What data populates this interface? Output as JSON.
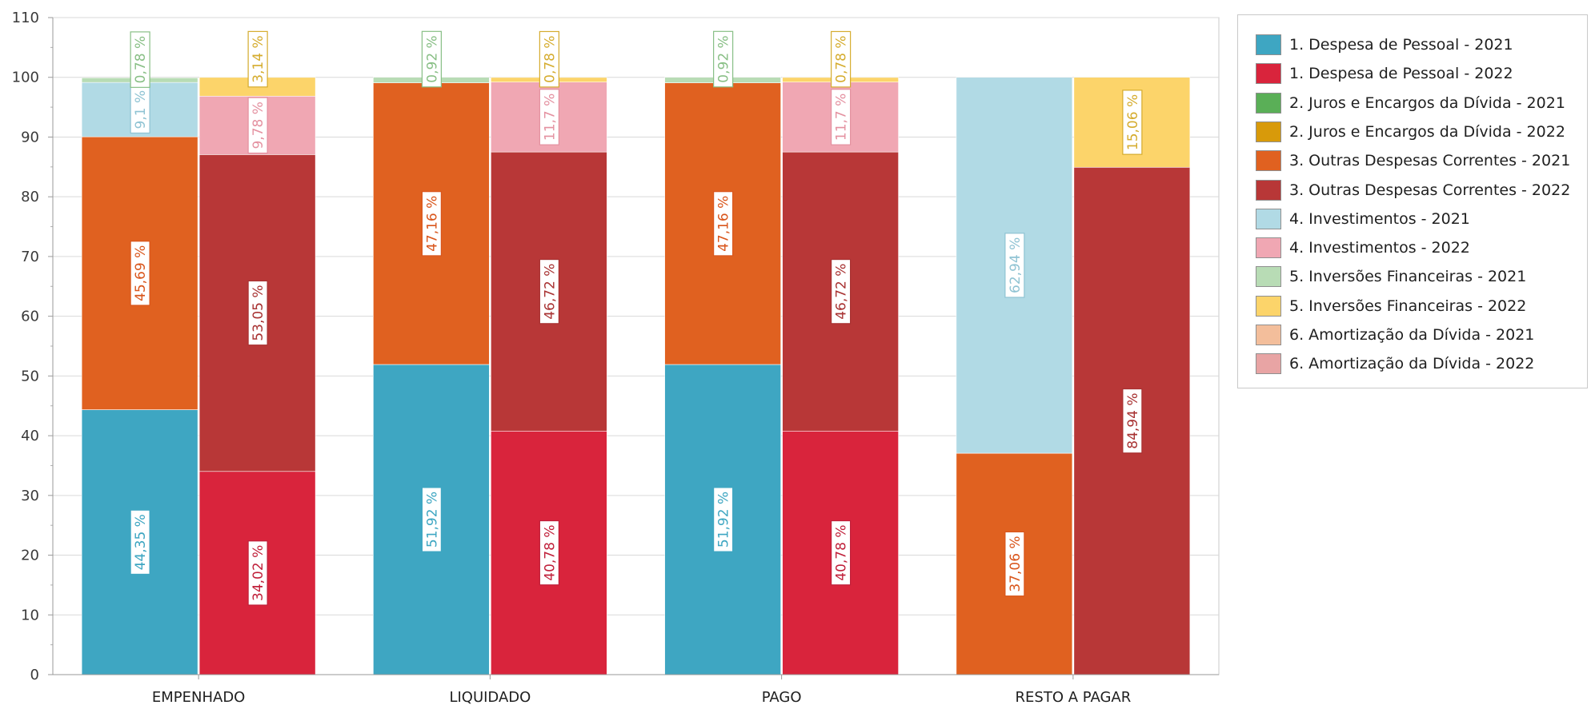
{
  "chart_data": {
    "type": "bar",
    "stacking": "percent-stacked-grouped",
    "title": "",
    "xlabel": "",
    "ylabel": "",
    "ylim": [
      0,
      110
    ],
    "yticks": [
      0,
      10,
      20,
      30,
      40,
      50,
      60,
      70,
      80,
      90,
      100,
      110
    ],
    "grid": true,
    "legend_position": "right",
    "categories": [
      "EMPENHADO",
      "LIQUIDADO",
      "PAGO",
      "RESTO A PAGAR"
    ],
    "groups": [
      "2021",
      "2022"
    ],
    "series": [
      {
        "name": "1. Despesa de Pessoal - 2021",
        "group": "2021",
        "color": "#3ea6c2",
        "label_color": "#3ea6c2",
        "values": [
          44.35,
          51.92,
          51.92,
          0
        ],
        "labels": [
          "44,35 %",
          "51,92 %",
          "51,92 %",
          ""
        ]
      },
      {
        "name": "1. Despesa de Pessoal - 2022",
        "group": "2022",
        "color": "#d9243c",
        "label_color": "#c0203a",
        "values": [
          34.02,
          40.78,
          40.78,
          0
        ],
        "labels": [
          "34,02 %",
          "40,78 %",
          "40,78 %",
          ""
        ]
      },
      {
        "name": "2. Juros e Encargos da Dívida - 2021",
        "group": "2021",
        "color": "#5aaf57",
        "label_color": "#5aaf57",
        "values": [
          0,
          0,
          0,
          0
        ],
        "labels": [
          "",
          "",
          "",
          ""
        ]
      },
      {
        "name": "2. Juros e Encargos da Dívida - 2022",
        "group": "2022",
        "color": "#d89a0a",
        "label_color": "#d89a0a",
        "values": [
          0,
          0,
          0,
          0
        ],
        "labels": [
          "",
          "",
          "",
          ""
        ]
      },
      {
        "name": "3. Outras Despesas Correntes - 2021",
        "group": "2021",
        "color": "#e06120",
        "label_color": "#d9561c",
        "values": [
          45.69,
          47.16,
          47.16,
          37.06
        ],
        "labels": [
          "45,69 %",
          "47,16 %",
          "47,16 %",
          "37,06 %"
        ]
      },
      {
        "name": "3. Outras Despesas Correntes - 2022",
        "group": "2022",
        "color": "#b83737",
        "label_color": "#a83232",
        "values": [
          53.05,
          46.72,
          46.72,
          84.94
        ],
        "labels": [
          "53,05 %",
          "46,72 %",
          "46,72 %",
          "84,94 %"
        ]
      },
      {
        "name": "4. Investimentos - 2021",
        "group": "2021",
        "color": "#b1dae5",
        "label_color": "#8fc3d3",
        "values": [
          9.1,
          0,
          0,
          62.94
        ],
        "labels": [
          "9,1 %",
          "",
          "",
          "62,94 %"
        ]
      },
      {
        "name": "4. Investimentos - 2022",
        "group": "2022",
        "color": "#f0a7b3",
        "label_color": "#e491a0",
        "values": [
          9.78,
          11.7,
          11.7,
          0
        ],
        "labels": [
          "9,78 %",
          "11,7 %",
          "11,7 %",
          ""
        ]
      },
      {
        "name": "5. Inversões Financeiras - 2021",
        "group": "2021",
        "color": "#b8dcb5",
        "label_color": "#88bf85",
        "values": [
          0.78,
          0.92,
          0.92,
          0
        ],
        "labels": [
          "0,78 %",
          "0,92 %",
          "0,92 %",
          ""
        ]
      },
      {
        "name": "5. Inversões Financeiras - 2022",
        "group": "2022",
        "color": "#fcd46a",
        "label_color": "#d5ac2e",
        "values": [
          3.14,
          0.78,
          0.78,
          15.06
        ],
        "labels": [
          "3,14 %",
          "0,78 %",
          "0,78 %",
          "15,06 %"
        ]
      },
      {
        "name": "6. Amortização da Dívida - 2021",
        "group": "2021",
        "color": "#f3be9b",
        "label_color": "#e9a37a",
        "values": [
          0,
          0,
          0,
          0
        ],
        "labels": [
          "",
          "",
          "",
          ""
        ]
      },
      {
        "name": "6. Amortização da Dívida - 2022",
        "group": "2022",
        "color": "#e8a4a4",
        "label_color": "#d48989",
        "values": [
          0,
          0,
          0,
          0
        ],
        "labels": [
          "",
          "",
          "",
          ""
        ]
      }
    ]
  }
}
